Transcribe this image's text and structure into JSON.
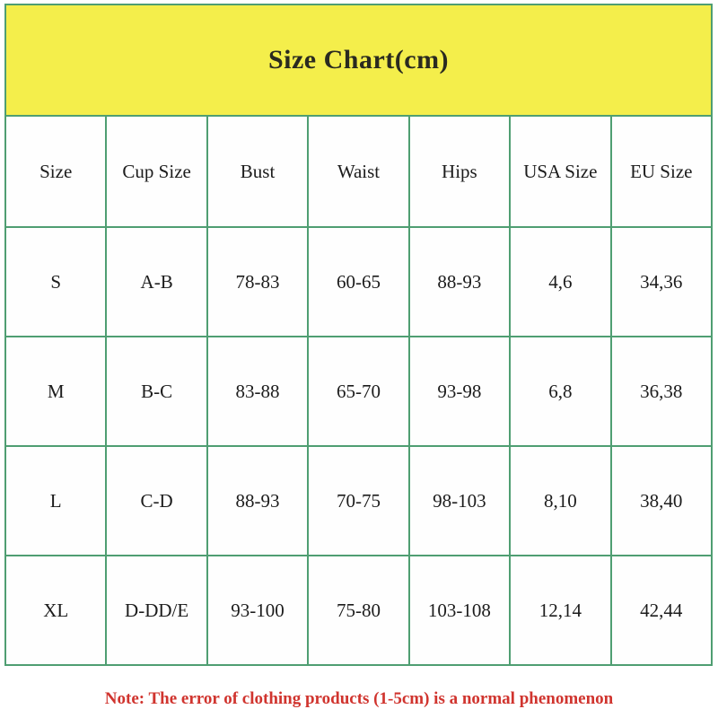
{
  "banner": {
    "title": "Size Chart(cm)",
    "background_color": "#f4ee4b",
    "text_color": "#2a2a20"
  },
  "table": {
    "border_color": "#4f9e72",
    "columns": [
      "Size",
      "Cup Size",
      "Bust",
      "Waist",
      "Hips",
      "USA Size",
      "EU Size"
    ],
    "rows": [
      [
        "S",
        "A-B",
        "78-83",
        "60-65",
        "88-93",
        "4,6",
        "34,36"
      ],
      [
        "M",
        "B-C",
        "83-88",
        "65-70",
        "93-98",
        "6,8",
        "36,38"
      ],
      [
        "L",
        "C-D",
        "88-93",
        "70-75",
        "98-103",
        "8,10",
        "38,40"
      ],
      [
        "XL",
        "D-DD/E",
        "93-100",
        "75-80",
        "103-108",
        "12,14",
        "42,44"
      ]
    ]
  },
  "note": {
    "text": "Note: The error of clothing products (1-5cm) is a normal phenomenon",
    "color": "#d0342e"
  },
  "chart_data": {
    "type": "table",
    "title": "Size Chart(cm)",
    "columns": [
      "Size",
      "Cup Size",
      "Bust",
      "Waist",
      "Hips",
      "USA Size",
      "EU Size"
    ],
    "rows": [
      [
        "S",
        "A-B",
        "78-83",
        "60-65",
        "88-93",
        "4,6",
        "34,36"
      ],
      [
        "M",
        "B-C",
        "83-88",
        "65-70",
        "93-98",
        "6,8",
        "36,38"
      ],
      [
        "L",
        "C-D",
        "88-93",
        "70-75",
        "98-103",
        "8,10",
        "38,40"
      ],
      [
        "XL",
        "D-DD/E",
        "93-100",
        "75-80",
        "103-108",
        "12,14",
        "42,44"
      ]
    ],
    "note": "Note: The error of clothing products (1-5cm) is a normal phenomenon"
  }
}
